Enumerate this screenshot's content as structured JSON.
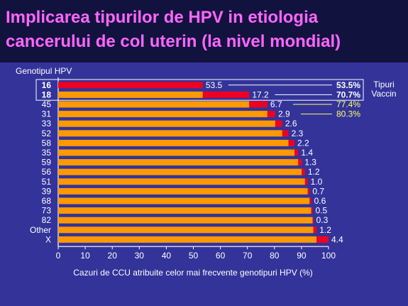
{
  "slide": {
    "title": "Implicarea tipurilor de HPV in etiologia cancerului de col uterin (la nivel mondial)"
  },
  "colors": {
    "background": "#33339a",
    "title_band": "#12123e",
    "title_text": "#ff66ff",
    "bar_base": "#ff9900",
    "bar_increment": "#ee0022",
    "cumulative_white": "#ffffff",
    "cumulative_yellow": "#ffff66"
  },
  "chart_data": {
    "type": "bar",
    "orientation": "horizontal",
    "stacked": true,
    "ylabel": "Genotipul HPV",
    "xlabel": "Cazuri de CCU atribuite celor mai frecvente genotipuri HPV (%)",
    "xlim": [
      0,
      100
    ],
    "xticks": [
      "0",
      "10",
      "20",
      "30",
      "40",
      "50",
      "60",
      "70",
      "80",
      "90",
      "100"
    ],
    "grid": false,
    "categories": [
      "16",
      "18",
      "45",
      "31",
      "33",
      "52",
      "58",
      "35",
      "59",
      "56",
      "51",
      "39",
      "68",
      "73",
      "82",
      "Other",
      "X"
    ],
    "category_bold": [
      true,
      true,
      false,
      false,
      false,
      false,
      false,
      false,
      false,
      false,
      false,
      false,
      false,
      false,
      false,
      false,
      false
    ],
    "series": [
      {
        "values": [
          0,
          53.5,
          70.7,
          77.4,
          80.3,
          82.9,
          85.2,
          87.4,
          88.8,
          90.1,
          91.3,
          92.3,
          93.0,
          93.6,
          94.1,
          94.4,
          95.6
        ]
      },
      {
        "values": [
          53.5,
          17.2,
          6.7,
          2.9,
          2.6,
          2.3,
          2.2,
          1.4,
          1.3,
          1.2,
          1.0,
          0.7,
          0.6,
          0.5,
          0.3,
          1.2,
          4.4
        ]
      }
    ],
    "data_labels": [
      "53.5",
      "17.2",
      "6.7",
      "2.9",
      "2.6",
      "2.3",
      "2.2",
      "1.4",
      "1.3",
      "1.2",
      "1.0",
      "0.7",
      "0.6",
      "0.5",
      "0.3",
      "1.2",
      "4.4"
    ],
    "cumulative_annotations": [
      {
        "category": "16",
        "text": "53.5%",
        "color": "white"
      },
      {
        "category": "18",
        "text": "70.7%",
        "color": "white"
      },
      {
        "category": "45",
        "text": "77.4%",
        "color": "yellow"
      },
      {
        "category": "31",
        "text": "80.3%",
        "color": "yellow"
      }
    ],
    "box_label": [
      "Tipuri",
      "Vaccin"
    ]
  }
}
